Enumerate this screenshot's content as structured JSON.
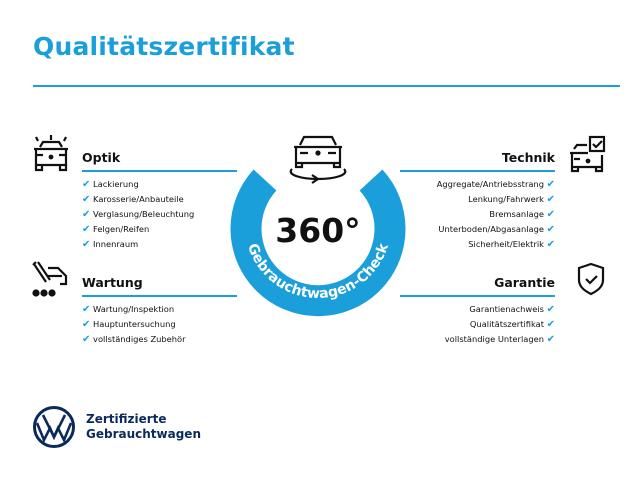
{
  "title": "Qualitätszertifikat",
  "center": {
    "degrees": "360°",
    "arc_text": "Gebrauchtwagen-Check"
  },
  "sections": {
    "optik": {
      "title": "Optik",
      "items": [
        "Lackierung",
        "Karosserie/Anbauteile",
        "Verglasung/Beleuchtung",
        "Felgen/Reifen",
        "Innenraum"
      ]
    },
    "wartung": {
      "title": "Wartung",
      "items": [
        "Wartung/Inspektion",
        "Hauptuntersuchung",
        "vollständiges Zubehör"
      ]
    },
    "technik": {
      "title": "Technik",
      "items": [
        "Aggregate/Antriebsstrang",
        "Lenkung/Fahrwerk",
        "Bremsanlage",
        "Unterboden/Abgasanlage",
        "Sicherheit/Elektrik"
      ]
    },
    "garantie": {
      "title": "Garantie",
      "items": [
        "Garantienachweis",
        "Qualitätszertifikat",
        "vollständige Unterlagen"
      ]
    }
  },
  "brand": {
    "line1": "Zertifizierte",
    "line2": "Gebrauchtwagen"
  },
  "colors": {
    "accent": "#1b9fdb",
    "logo": "#0a2a5c"
  },
  "check_glyph": "✔"
}
